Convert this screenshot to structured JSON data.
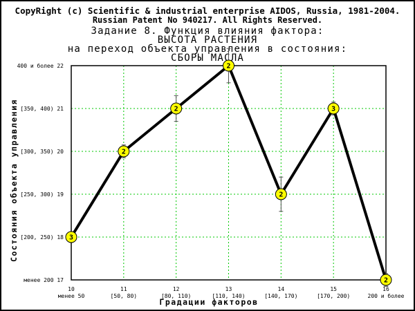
{
  "header": {
    "copyright": "CopyRight (c) Scientific & industrial enterprise AIDOS, Russia, 1981-2004.",
    "patent": "Russian Patent No 940217. All Rights Reserved.",
    "title_line1": "Задание 8. Функция влияния фактора:",
    "title_line2": "ВЫСОТА РАСТЕНИЯ",
    "title_line3": "на переход объекта управления в состояния:",
    "title_line4": "СБОРЫ МАСЛА"
  },
  "colors": {
    "background": "#000000",
    "canvas": "#ffffff",
    "grid": "#00c800",
    "line": "#000000",
    "marker_fill": "#ffff00",
    "error_bar": "#505050"
  },
  "chart_data": {
    "type": "line",
    "xlabel": "Градации факторов",
    "ylabel": "Состояния объекта управления",
    "x_ticks": [
      {
        "value": 10,
        "label": "10",
        "sublabel": "менее 50"
      },
      {
        "value": 11,
        "label": "11",
        "sublabel": "[50, 80)"
      },
      {
        "value": 12,
        "label": "12",
        "sublabel": "[80, 110)"
      },
      {
        "value": 13,
        "label": "13",
        "sublabel": "[110, 140)"
      },
      {
        "value": 14,
        "label": "14",
        "sublabel": "[140, 170)"
      },
      {
        "value": 15,
        "label": "15",
        "sublabel": "[170, 200)"
      },
      {
        "value": 16,
        "label": "16",
        "sublabel": "200 и более"
      }
    ],
    "y_ticks": [
      {
        "value": 17,
        "label": "менее 200 17"
      },
      {
        "value": 18,
        "label": "[200, 250) 18"
      },
      {
        "value": 19,
        "label": "[250, 300) 19"
      },
      {
        "value": 20,
        "label": "[300, 350) 20"
      },
      {
        "value": 21,
        "label": "[350, 400) 21"
      },
      {
        "value": 22,
        "label": "400 и более 22"
      }
    ],
    "xlim": [
      10,
      16
    ],
    "ylim": [
      17,
      22
    ],
    "grid": true,
    "points": [
      {
        "x": 10,
        "y": 18,
        "label": "3",
        "err": 0
      },
      {
        "x": 11,
        "y": 20,
        "label": "2",
        "err": 0.15
      },
      {
        "x": 12,
        "y": 21,
        "label": "2",
        "err": 0.3
      },
      {
        "x": 13,
        "y": 22,
        "label": "2",
        "err": 0.4
      },
      {
        "x": 14,
        "y": 19,
        "label": "2",
        "err": 0.4
      },
      {
        "x": 15,
        "y": 21,
        "label": "3",
        "err": 0.15
      },
      {
        "x": 16,
        "y": 17,
        "label": "2",
        "err": 0.15
      }
    ]
  }
}
